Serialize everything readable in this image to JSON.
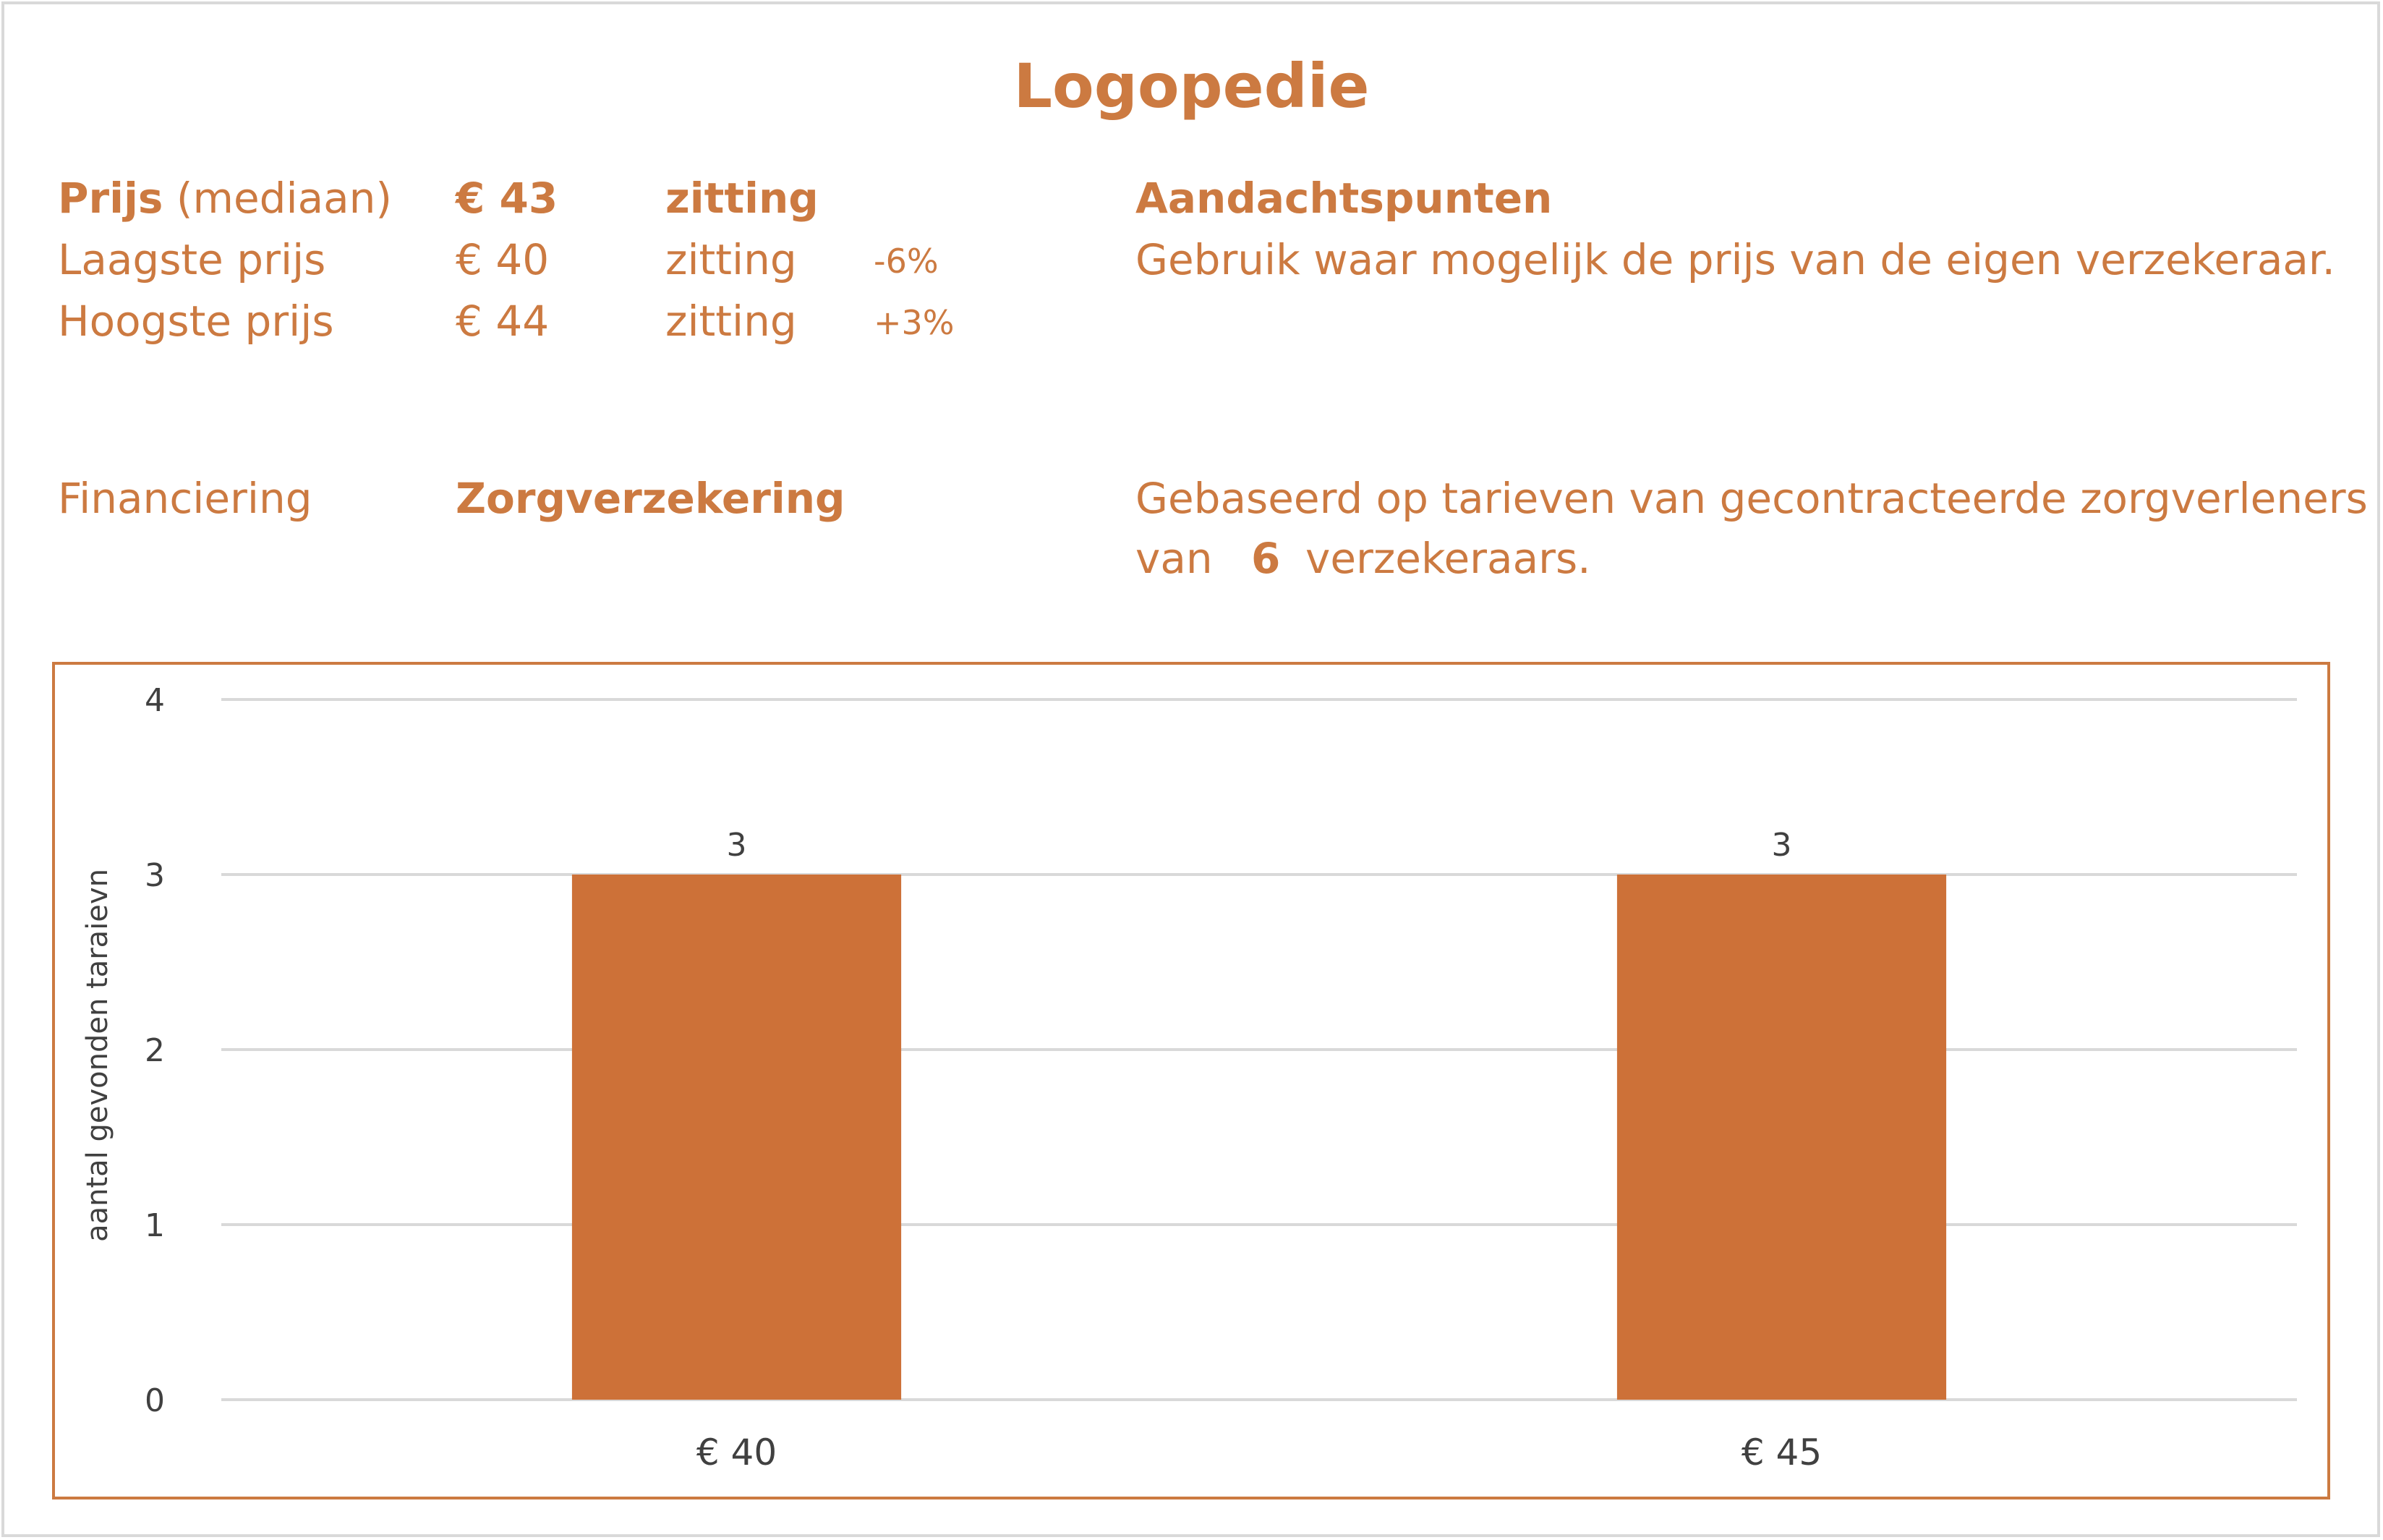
{
  "title": "Logopedie",
  "summary": {
    "median": {
      "label_bold": "Prijs",
      "label_rest": " (mediaan)",
      "price": "€ 43",
      "unit": "zitting"
    },
    "lowest": {
      "label": "Laagste prijs",
      "price": "€ 40",
      "unit": "zitting",
      "pct": "-6%"
    },
    "highest": {
      "label": "Hoogste prijs",
      "price": "€ 44",
      "unit": "zitting",
      "pct": "+3%"
    },
    "financing_label": "Financiering",
    "financing_value": "Zorgverzekering"
  },
  "notes": {
    "heading": "Aandachtspunten",
    "line1": "Gebruik waar mogelijk de prijs van de eigen verzekeraar.",
    "basis_line1": "Gebaseerd op tarieven van gecontracteerde zorgverleners",
    "basis_prefix": "van",
    "basis_count": "6",
    "basis_suffix": "verzekeraars."
  },
  "colors": {
    "accent": "#cc7a41",
    "bar": "#cd7138",
    "grid": "#d9d9d9",
    "axis_text": "#404040"
  },
  "chart_data": {
    "type": "bar",
    "categories": [
      "€ 40",
      "€ 45"
    ],
    "values": [
      3,
      3
    ],
    "data_labels": [
      "3",
      "3"
    ],
    "ylabel": "aantal gevonden taraievn",
    "ylim": [
      0,
      4
    ],
    "yticks": [
      0,
      1,
      2,
      3,
      4
    ],
    "grid": true,
    "legend": "none"
  }
}
